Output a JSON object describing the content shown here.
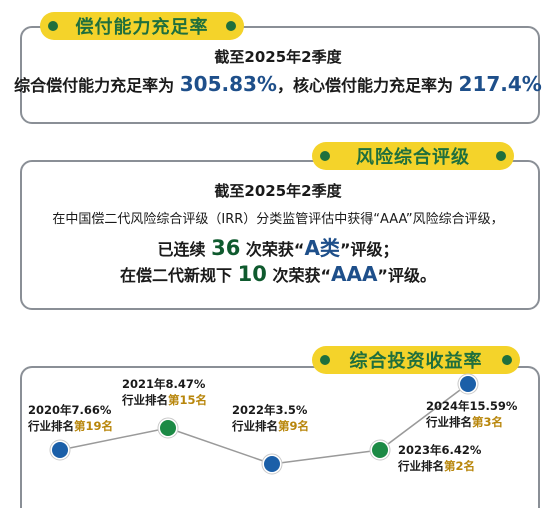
{
  "solvency": {
    "title": "偿付能力充足率",
    "period": "截至2025年2季度",
    "line_prefix": "综合偿付能力充足率为",
    "comprehensive_value": "305.83%",
    "mid_text": "，核心偿付能力充足率为",
    "core_value": "217.4%"
  },
  "risk": {
    "title": "风险综合评级",
    "period": "截至2025年2季度",
    "desc": "在中国偿二代风险综合评级（IRR）分类监管评估中获得“AAA”风险综合评级，",
    "line3_a": "已连续",
    "line3_count": "36",
    "line3_b": "次荣获“",
    "line3_grade": "A类",
    "line3_c": "”评级；",
    "line4_a": "在偿二代新规下",
    "line4_count": "10",
    "line4_b": "次荣获“",
    "line4_grade": "AAA",
    "line4_c": "”评级。"
  },
  "investment": {
    "title": "综合投资收益率",
    "rank_prefix": "行业排名",
    "points": [
      {
        "label": "2020年7.66%",
        "rank": "第19名",
        "year": 2020,
        "value": 7.66,
        "color": "#1b5fa8"
      },
      {
        "label": "2021年8.47%",
        "rank": "第15名",
        "year": 2021,
        "value": 8.47,
        "color": "#1c8a45"
      },
      {
        "label": "2022年3.5%",
        "rank": "第9名",
        "year": 2022,
        "value": 3.5,
        "color": "#1b5fa8"
      },
      {
        "label": "2023年6.42%",
        "rank": "第2名",
        "year": 2023,
        "value": 6.42,
        "color": "#1c8a45"
      },
      {
        "label": "2024年15.59%",
        "rank": "第3名",
        "year": 2024,
        "value": 15.59,
        "color": "#1b5fa8"
      }
    ]
  },
  "chart_data": {
    "type": "line",
    "categories": [
      "2020",
      "2021",
      "2022",
      "2023",
      "2024"
    ],
    "series": [
      {
        "values": [
          7.66,
          8.47,
          3.5,
          6.42,
          15.59
        ]
      }
    ],
    "annotations": [
      "第19名",
      "第15名",
      "第9名",
      "第2名",
      "第3名"
    ]
  },
  "colors": {
    "accent_yellow": "#f4d32a",
    "green": "#1f6f3d",
    "blue": "#1e4f8a",
    "rank_gold": "#b8860b"
  }
}
